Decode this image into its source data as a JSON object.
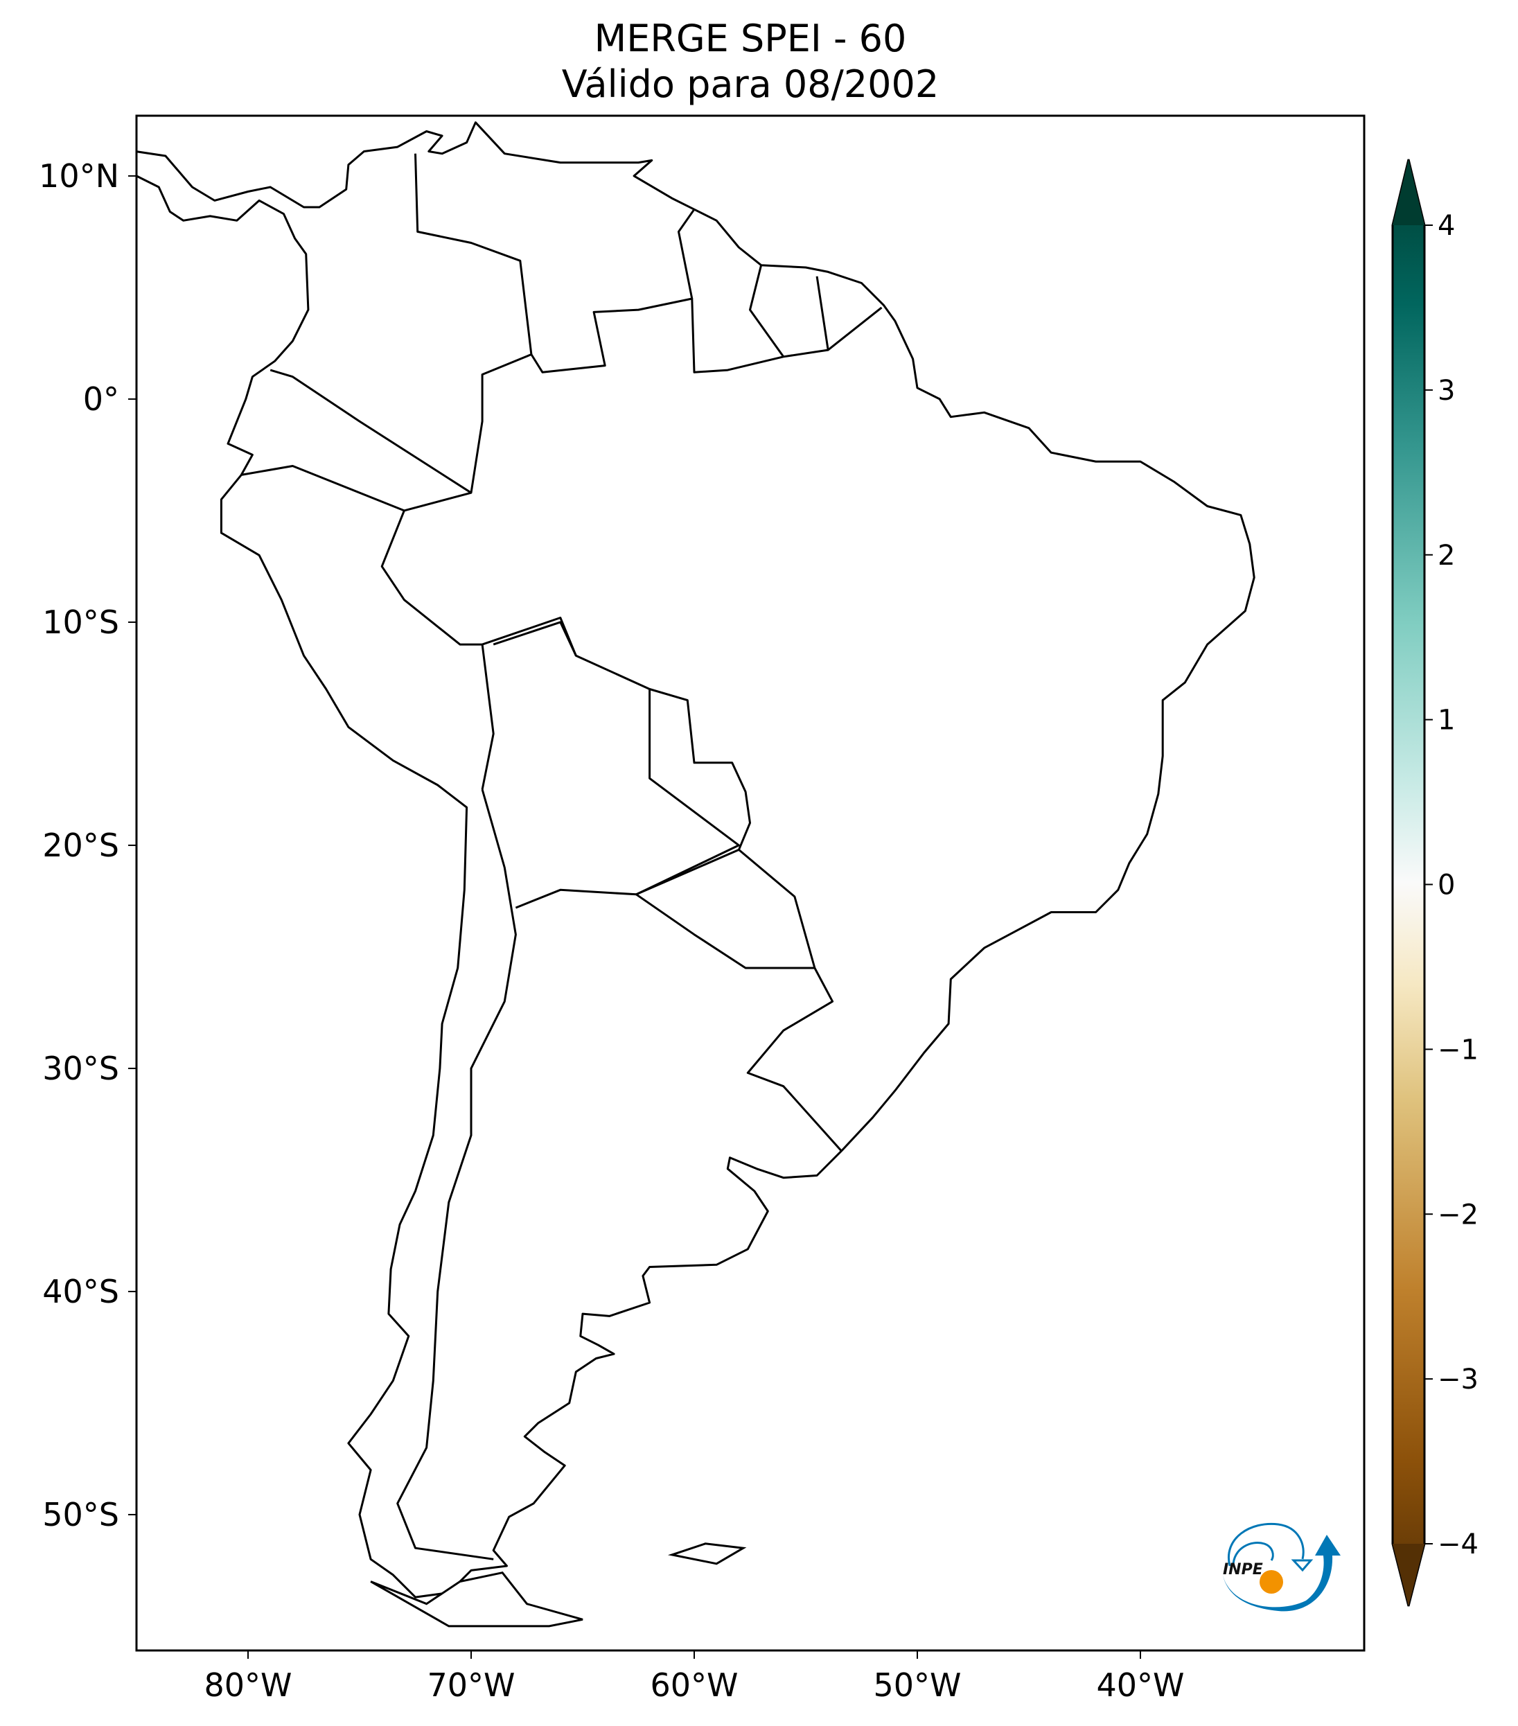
{
  "title": "MERGE   SPEI - 60",
  "subtitle": "Válido para 08/2002",
  "logo_text": "INPE",
  "chart_data": {
    "type": "heatmap",
    "title": "MERGE   SPEI - 60",
    "subtitle": "Válido para 08/2002",
    "projection": "plate-carree",
    "extent": {
      "lon": [
        -85,
        -30
      ],
      "lat": [
        -56,
        12.7
      ]
    },
    "x_ticks": [
      {
        "value": -80,
        "label": "80°W"
      },
      {
        "value": -70,
        "label": "70°W"
      },
      {
        "value": -60,
        "label": "60°W"
      },
      {
        "value": -50,
        "label": "50°W"
      },
      {
        "value": -40,
        "label": "40°W"
      }
    ],
    "y_ticks": [
      {
        "value": 10,
        "label": "10°N"
      },
      {
        "value": 0,
        "label": "0°"
      },
      {
        "value": -10,
        "label": "10°S"
      },
      {
        "value": -20,
        "label": "20°S"
      },
      {
        "value": -30,
        "label": "30°S"
      },
      {
        "value": -40,
        "label": "40°S"
      },
      {
        "value": -50,
        "label": "50°S"
      }
    ],
    "grid": false,
    "colorbar": {
      "colormap": "BrBG",
      "range": [
        -4,
        4
      ],
      "extend": "both",
      "placement": "right",
      "ticks": [
        "4",
        "3",
        "2",
        "1",
        "0",
        "-1",
        "-2",
        "-3",
        "-4"
      ],
      "colors": [
        "#543005",
        "#8c510a",
        "#bf812d",
        "#dfc27d",
        "#f6e8c3",
        "#f5f5f5",
        "#c7eae5",
        "#80cdc1",
        "#35978f",
        "#01665e",
        "#003c30"
      ]
    },
    "field_appearance": "near 0 (white) across the continent"
  }
}
